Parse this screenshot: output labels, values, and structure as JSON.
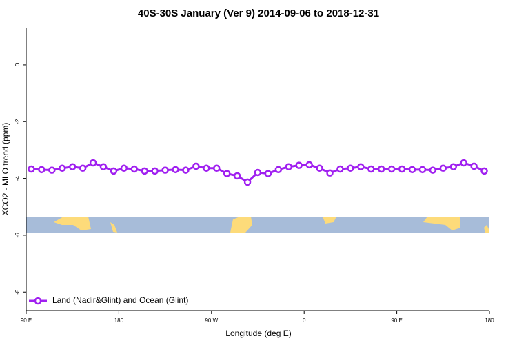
{
  "chart_data": {
    "type": "line",
    "title": "40S-30S January (Ver 9)   2014-09-06 to 2018-12-31",
    "x_label": "Longitude (deg E)",
    "y_label": "XCO2 - MLO trend (ppm)",
    "x": [
      95,
      105,
      115,
      125,
      135,
      145,
      155,
      165,
      175,
      185,
      195,
      205,
      215,
      225,
      235,
      245,
      255,
      265,
      275,
      285,
      295,
      305,
      315,
      325,
      335,
      345,
      355,
      365,
      375,
      385,
      395,
      405,
      415,
      425,
      435,
      445,
      455,
      465,
      475,
      485,
      495,
      505,
      515,
      525,
      535
    ],
    "series": [
      {
        "name": "Land (Nadir&Glint) and Ocean (Glint)",
        "color": "#a020f0",
        "values": [
          -3.67,
          -3.69,
          -3.71,
          -3.64,
          -3.59,
          -3.64,
          -3.45,
          -3.59,
          -3.74,
          -3.64,
          -3.67,
          -3.74,
          -3.74,
          -3.71,
          -3.69,
          -3.71,
          -3.57,
          -3.64,
          -3.64,
          -3.83,
          -3.91,
          -4.13,
          -3.79,
          -3.83,
          -3.69,
          -3.59,
          -3.54,
          -3.52,
          -3.64,
          -3.81,
          -3.67,
          -3.64,
          -3.59,
          -3.67,
          -3.67,
          -3.67,
          -3.67,
          -3.69,
          -3.69,
          -3.71,
          -3.64,
          -3.59,
          -3.45,
          -3.57,
          -3.74
        ]
      }
    ],
    "xlim": [
      90,
      540
    ],
    "xticks": [
      {
        "value": 90,
        "label": "90 E"
      },
      {
        "value": 180,
        "label": "180"
      },
      {
        "value": 270,
        "label": "90 W"
      },
      {
        "value": 360,
        "label": "0"
      },
      {
        "value": 450,
        "label": "90 E"
      },
      {
        "value": 540,
        "label": "180"
      }
    ],
    "ylim": [
      -8.65,
      1.31
    ],
    "yticks": [
      0,
      -2,
      -4,
      -6,
      -8
    ],
    "legend": "bottom-left"
  }
}
